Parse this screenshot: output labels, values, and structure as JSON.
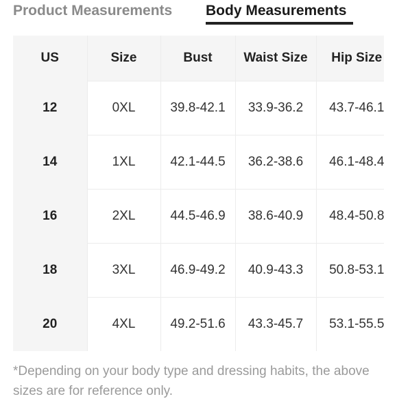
{
  "tabs": {
    "product_label": "Product Measurements",
    "body_label": "Body Measurements"
  },
  "table": {
    "headers": [
      "US",
      "Size",
      "Bust",
      "Waist Size",
      "Hip Size"
    ],
    "rows": [
      [
        "12",
        "0XL",
        "39.8-42.1",
        "33.9-36.2",
        "43.7-46.1"
      ],
      [
        "14",
        "1XL",
        "42.1-44.5",
        "36.2-38.6",
        "46.1-48.4"
      ],
      [
        "16",
        "2XL",
        "44.5-46.9",
        "38.6-40.9",
        "48.4-50.8"
      ],
      [
        "18",
        "3XL",
        "46.9-49.2",
        "40.9-43.3",
        "50.8-53.1"
      ],
      [
        "20",
        "4XL",
        "49.2-51.6",
        "43.3-45.7",
        "53.1-55.5"
      ]
    ]
  },
  "note": "*Depending on your body type and dressing habits, the above sizes are for reference only."
}
